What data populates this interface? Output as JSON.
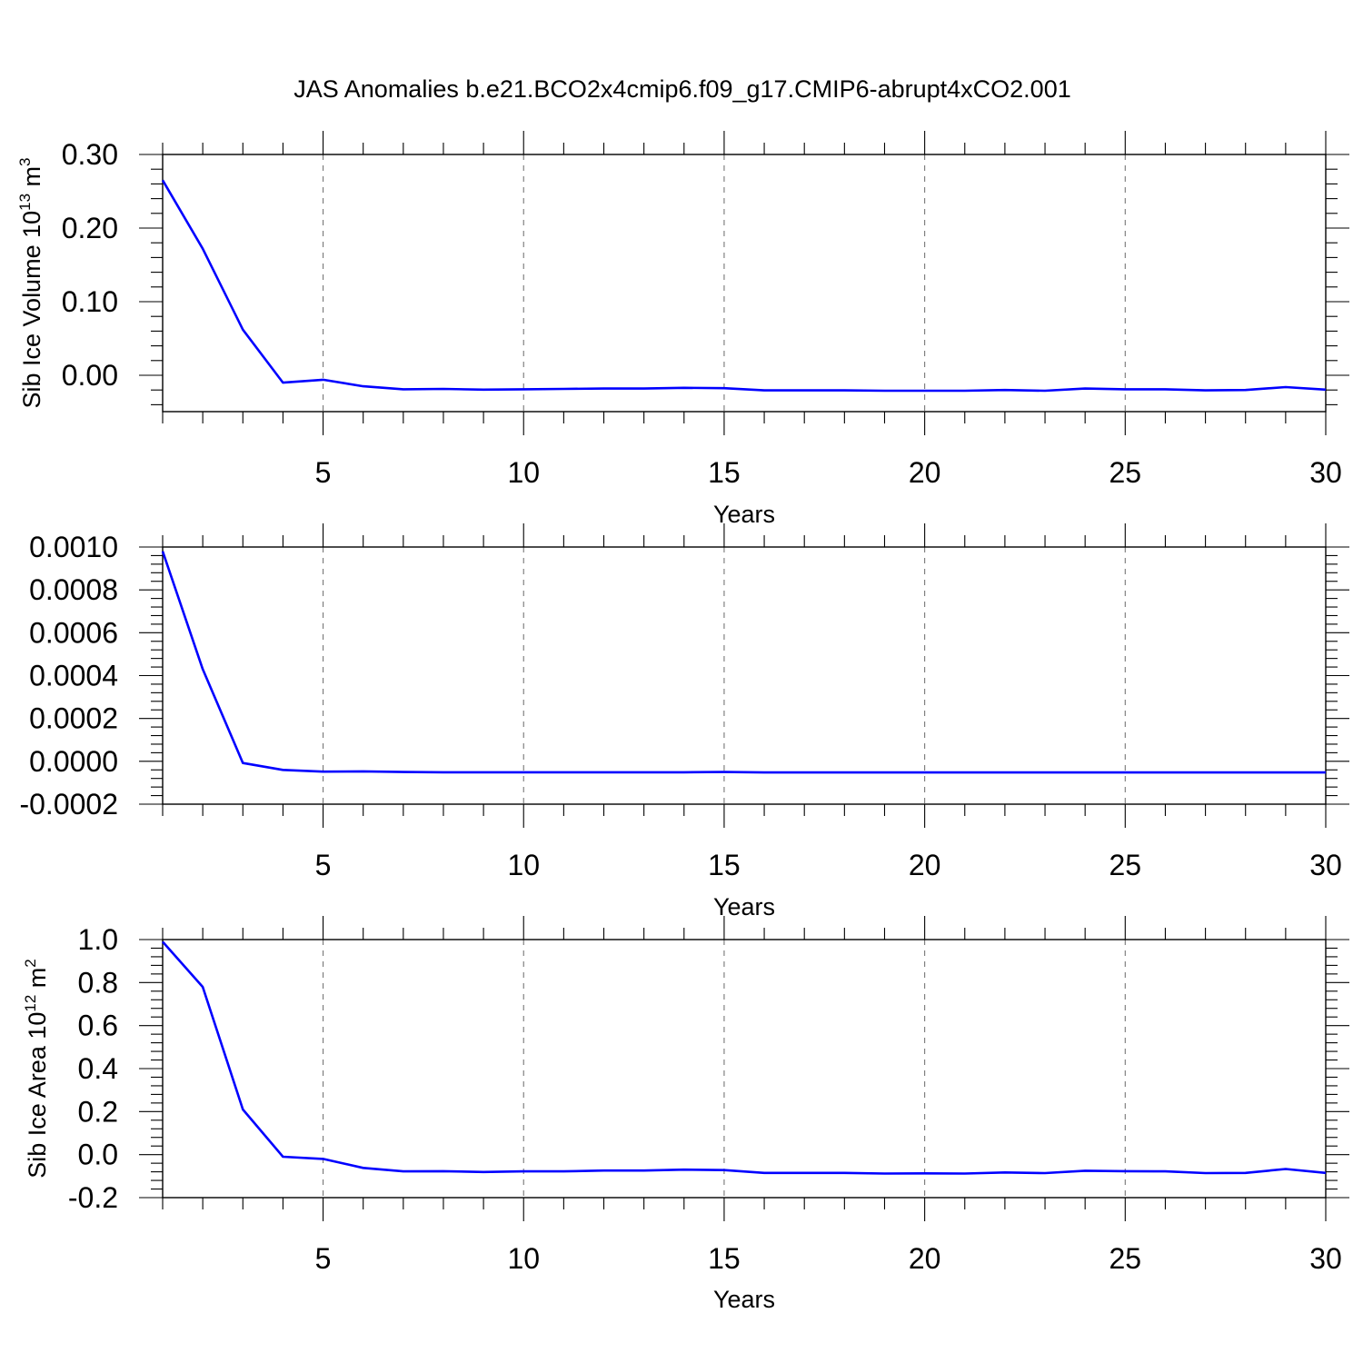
{
  "title": "JAS Anomalies b.e21.BCO2x4cmip6.f09_g17.CMIP6-abrupt4xCO2.001",
  "colors": {
    "line": "#0000ff",
    "grid": "#777777",
    "frame": "#000000"
  },
  "chart_data": [
    {
      "type": "line",
      "ylabel": {
        "text": "Sib Ice Volume 10",
        "sup1": "13",
        "mid": " m",
        "sup2": "3"
      },
      "xlabel": "Years",
      "xlim": [
        1,
        30
      ],
      "ylim": [
        -0.05,
        0.32
      ],
      "x_ticks": [
        5,
        10,
        15,
        20,
        25,
        30
      ],
      "y_ticks": [
        0.3,
        0.2,
        0.1,
        0.0
      ],
      "y_tick_labels": [
        "0.30",
        "0.20",
        "0.10",
        "0.00"
      ],
      "grid": "vertical dashed at major x ticks",
      "x": [
        1,
        2,
        3,
        4,
        5,
        6,
        7,
        8,
        9,
        10,
        11,
        12,
        13,
        14,
        15,
        16,
        17,
        18,
        19,
        20,
        21,
        22,
        23,
        24,
        25,
        26,
        27,
        28,
        29,
        30
      ],
      "values": [
        0.265,
        0.172,
        0.062,
        -0.01,
        -0.006,
        -0.015,
        -0.019,
        -0.0185,
        -0.0195,
        -0.019,
        -0.0185,
        -0.018,
        -0.018,
        -0.017,
        -0.0175,
        -0.0205,
        -0.0205,
        -0.0205,
        -0.021,
        -0.021,
        -0.021,
        -0.02,
        -0.021,
        -0.018,
        -0.019,
        -0.019,
        -0.0205,
        -0.02,
        -0.016,
        -0.0195
      ]
    },
    {
      "type": "line",
      "ylabel": null,
      "xlabel": "Years",
      "xlim": [
        1,
        30
      ],
      "ylim": [
        -0.0002,
        0.001
      ],
      "x_ticks": [
        5,
        10,
        15,
        20,
        25,
        30
      ],
      "y_ticks": [
        0.001,
        0.0008,
        0.0006,
        0.0004,
        0.0002,
        0.0,
        -0.0002
      ],
      "y_tick_labels": [
        "0.0010",
        "0.0008",
        "0.0006",
        "0.0004",
        "0.0002",
        "0.0000",
        "-0.0002"
      ],
      "grid": "vertical dashed at major x ticks",
      "x": [
        1,
        2,
        3,
        4,
        5,
        6,
        7,
        8,
        9,
        10,
        11,
        12,
        13,
        14,
        15,
        16,
        17,
        18,
        19,
        20,
        21,
        22,
        23,
        24,
        25,
        26,
        27,
        28,
        29,
        30
      ],
      "values": [
        0.00098,
        0.00043,
        -8e-06,
        -4e-05,
        -4.8e-05,
        -4.7e-05,
        -5e-05,
        -5.1e-05,
        -5.1e-05,
        -5.1e-05,
        -5.1e-05,
        -5.1e-05,
        -5.1e-05,
        -5.1e-05,
        -5e-05,
        -5.2e-05,
        -5.2e-05,
        -5.2e-05,
        -5.2e-05,
        -5.2e-05,
        -5.2e-05,
        -5.2e-05,
        -5.2e-05,
        -5.2e-05,
        -5.2e-05,
        -5.2e-05,
        -5.2e-05,
        -5.2e-05,
        -5.2e-05,
        -5.2e-05
      ]
    },
    {
      "type": "line",
      "ylabel": {
        "text": "Sib Ice Area 10",
        "sup1": "12",
        "mid": " m",
        "sup2": "2"
      },
      "xlabel": "Years",
      "xlim": [
        1,
        30
      ],
      "ylim": [
        -0.2,
        1.0
      ],
      "x_ticks": [
        5,
        10,
        15,
        20,
        25,
        30
      ],
      "y_ticks": [
        1.0,
        0.8,
        0.6,
        0.4,
        0.2,
        0.0,
        -0.2
      ],
      "y_tick_labels": [
        "1.0",
        "0.8",
        "0.6",
        "0.4",
        "0.2",
        "0.0",
        "-0.2"
      ],
      "grid": "vertical dashed at major x ticks",
      "x": [
        1,
        2,
        3,
        4,
        5,
        6,
        7,
        8,
        9,
        10,
        11,
        12,
        13,
        14,
        15,
        16,
        17,
        18,
        19,
        20,
        21,
        22,
        23,
        24,
        25,
        26,
        27,
        28,
        29,
        30
      ],
      "values": [
        0.99,
        0.78,
        0.21,
        -0.01,
        -0.02,
        -0.062,
        -0.078,
        -0.077,
        -0.081,
        -0.078,
        -0.078,
        -0.074,
        -0.074,
        -0.07,
        -0.072,
        -0.085,
        -0.085,
        -0.085,
        -0.088,
        -0.087,
        -0.088,
        -0.083,
        -0.086,
        -0.075,
        -0.077,
        -0.078,
        -0.086,
        -0.085,
        -0.067,
        -0.085
      ]
    }
  ]
}
